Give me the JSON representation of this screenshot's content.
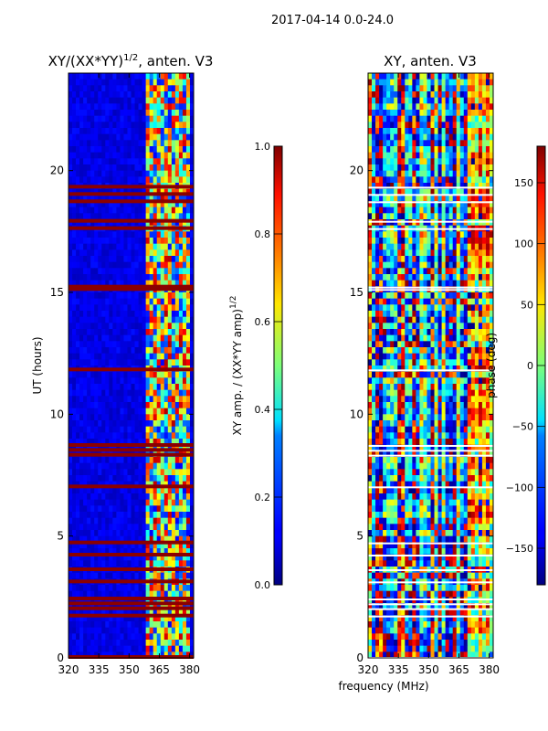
{
  "figure": {
    "suptitle": "2017-04-14 0.0-24.0",
    "shared_xlabel": "frequency (MHz)"
  },
  "chart_data": [
    {
      "type": "heatmap",
      "title": "XY/(XX*YY)",
      "title_exponent": "1/2",
      "title_suffix": ", anten. V3",
      "xlabel": "",
      "ylabel": "UT (hours)",
      "xlim": [
        320,
        382
      ],
      "ylim": [
        0,
        24
      ],
      "xticks": [
        320,
        335,
        350,
        365,
        380
      ],
      "yticks": [
        0,
        5,
        10,
        15,
        20
      ],
      "colormap": "jet",
      "colorbar": {
        "label": "XY amp. / (XX*YY amp)",
        "label_exponent": "1/2",
        "range": [
          0.0,
          1.0
        ],
        "ticks": [
          "0.0",
          "0.2",
          "0.4",
          "0.6",
          "0.8",
          "1.0"
        ],
        "tick_values": [
          0.0,
          0.2,
          0.4,
          0.6,
          0.8,
          1.0
        ]
      },
      "saturated_time_bands_hours": [
        0.0,
        1.7,
        2.0,
        2.2,
        2.4,
        3.1,
        3.6,
        4.2,
        4.7,
        7.0,
        8.3,
        8.5,
        8.7,
        11.8,
        15.1,
        15.2,
        17.6,
        17.9,
        18.7,
        19.0,
        19.3
      ],
      "active_freq_range_mhz": [
        358,
        380
      ],
      "value_notes": "Low normalized amplitude (~0.05-0.15) below 358 MHz; patchy high values (0.4-1.0) in 358-380 MHz; saturated (1.0) horizontal bands at listed hours"
    },
    {
      "type": "heatmap",
      "title": "XY, anten. V3",
      "xlabel": "frequency (MHz)",
      "ylabel": "",
      "xlim": [
        320,
        382
      ],
      "ylim": [
        0,
        24
      ],
      "xticks": [
        320,
        335,
        350,
        365,
        380
      ],
      "yticks": [
        0,
        5,
        10,
        15,
        20
      ],
      "colormap": "jet",
      "colorbar": {
        "label": "phase (deg)",
        "range": [
          -180,
          180
        ],
        "ticks": [
          "150",
          "100",
          "50",
          "0",
          "−50",
          "−100",
          "−150"
        ],
        "tick_values": [
          150,
          100,
          50,
          0,
          -50,
          -100,
          -150
        ]
      },
      "value_notes": "XY phase in degrees spanning -180 to 180, with vertical frequency structure and horizontal time bands"
    }
  ]
}
